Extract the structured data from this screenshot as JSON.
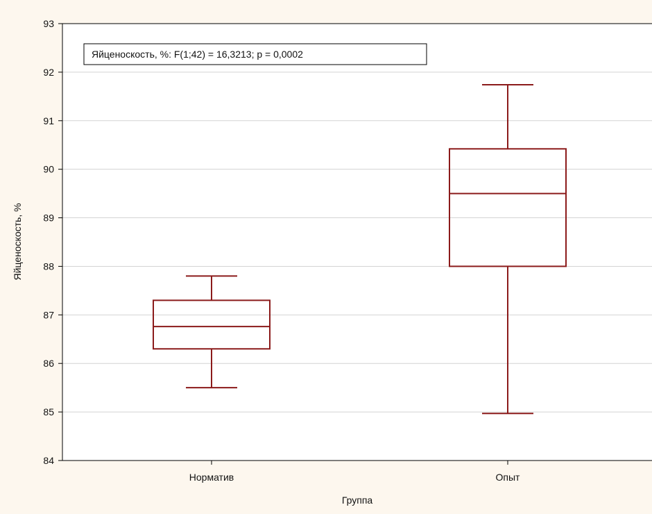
{
  "chart_data": {
    "type": "boxplot",
    "title": "",
    "xlabel": "Группа",
    "ylabel": "Яйценоскость, %",
    "ylim": [
      84,
      93
    ],
    "yticks": [
      84,
      85,
      86,
      87,
      88,
      89,
      90,
      91,
      92,
      93
    ],
    "categories": [
      "Норматив",
      "Опыт"
    ],
    "boxes": [
      {
        "category": "Норматив",
        "whisker_low": 85.5,
        "q1": 86.3,
        "median": 86.76,
        "q3": 87.3,
        "whisker_high": 87.8
      },
      {
        "category": "Опыт",
        "whisker_low": 84.97,
        "q1": 88.0,
        "median": 89.5,
        "q3": 90.42,
        "whisker_high": 91.74
      }
    ],
    "annotation": "Яйценоскость, %:   F(1;42) = 16,3213; p = 0,0002",
    "grid": true,
    "colors": {
      "box": "#8b1a1a",
      "grid": "#d3d3d3",
      "axis": "#000000",
      "background": "#ffffff",
      "frame": "#fdf7ee"
    }
  }
}
